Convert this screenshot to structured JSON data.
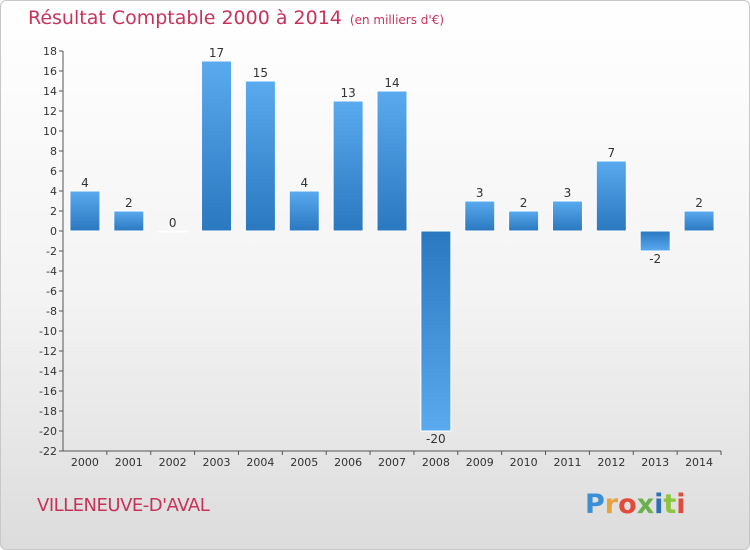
{
  "title": "Résultat Comptable 2000 à 2014",
  "subtitle": "(en milliers d'€)",
  "city": "VILLENEUVE-D'AVAL",
  "logo": {
    "text": "Proxiti",
    "colors": [
      "#3a8fd6",
      "#e8a23c",
      "#e24a3a",
      "#6ab04c",
      "#2d6fb8",
      "#8cc63f",
      "#e24a3a"
    ]
  },
  "colors": {
    "bar_top": "#5aaaf0",
    "bar_bottom": "#2a78bf",
    "title": "#c8325a"
  },
  "chart_data": {
    "type": "bar",
    "categories": [
      "2000",
      "2001",
      "2002",
      "2003",
      "2004",
      "2005",
      "2006",
      "2007",
      "2008",
      "2009",
      "2010",
      "2011",
      "2012",
      "2013",
      "2014"
    ],
    "values": [
      4,
      2,
      0,
      17,
      15,
      4,
      13,
      14,
      -20,
      3,
      2,
      3,
      7,
      -2,
      2
    ],
    "ylim": [
      -22,
      18
    ],
    "yticks": [
      18,
      16,
      14,
      12,
      10,
      8,
      6,
      4,
      2,
      0,
      -2,
      -4,
      -6,
      -8,
      -10,
      -12,
      -14,
      -16,
      -18,
      -20,
      -22
    ],
    "grid": false,
    "legend": "none"
  }
}
